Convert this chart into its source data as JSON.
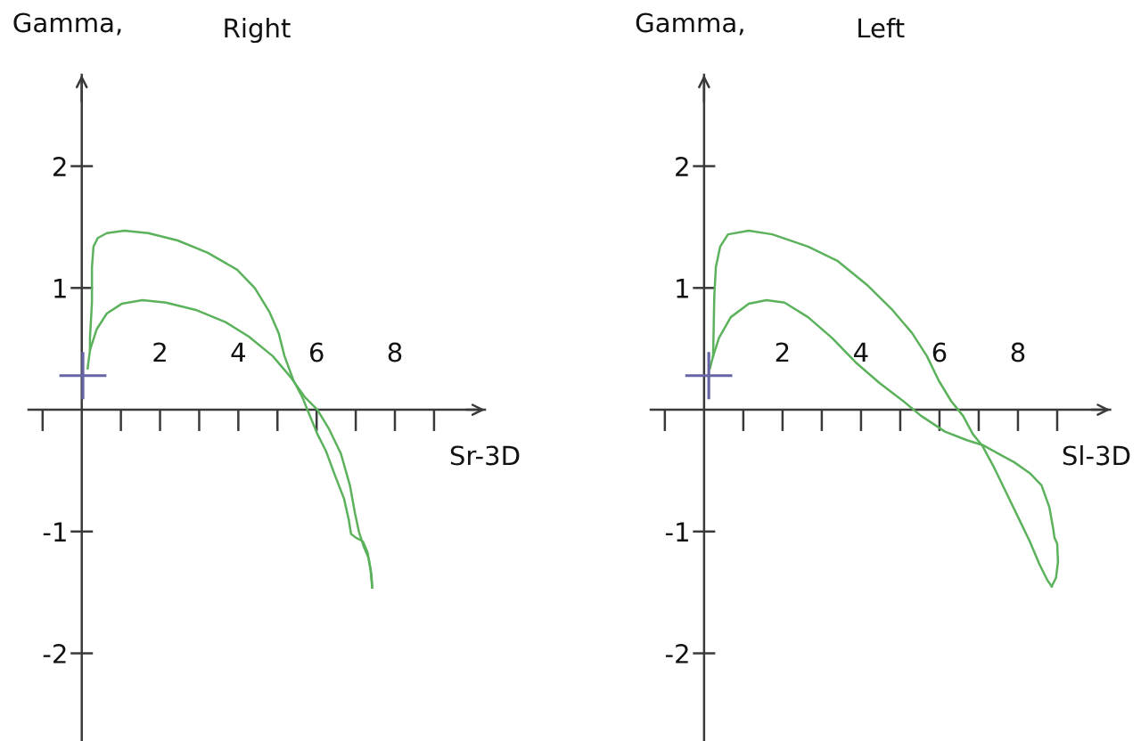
{
  "chart_data": [
    {
      "type": "line",
      "title": "Right",
      "ylabel": "Gamma,",
      "xlabel": "Sr-3D",
      "xlim": [
        -1.36,
        10.3
      ],
      "ylim": [
        -2.72,
        2.75
      ],
      "xticks": [
        {
          "value": -1,
          "label": null
        },
        {
          "value": 1,
          "label": null
        },
        2,
        {
          "value": 3,
          "label": null
        },
        4,
        {
          "value": 5,
          "label": null
        },
        6,
        {
          "value": 7,
          "label": null
        },
        8,
        {
          "value": 9,
          "label": null
        }
      ],
      "yticks": [
        -2,
        -1,
        1,
        2
      ],
      "series": [
        {
          "color": "#5cb25c",
          "x": [
            0.21,
            0.21,
            0.26,
            0.26,
            0.3,
            0.41,
            0.64,
            1.09,
            1.7,
            2.45,
            3.21,
            3.97,
            4.42,
            4.8,
            5.03,
            5.18,
            5.41,
            5.64,
            5.79,
            6.02,
            6.24,
            6.47,
            6.7,
            6.82,
            6.88,
            7.0,
            7.18,
            7.3,
            7.38,
            7.42
          ],
          "values": [
            0.49,
            0.59,
            0.88,
            1.17,
            1.34,
            1.41,
            1.45,
            1.47,
            1.45,
            1.39,
            1.29,
            1.15,
            1.0,
            0.8,
            0.63,
            0.44,
            0.24,
            0.1,
            -0.02,
            -0.2,
            -0.34,
            -0.54,
            -0.73,
            -0.9,
            -1.02,
            -1.05,
            -1.08,
            -1.17,
            -1.32,
            -1.46
          ]
        },
        {
          "color": "#5cb25c",
          "x": [
            0.15,
            0.21,
            0.38,
            0.64,
            1.02,
            1.55,
            2.15,
            2.91,
            3.67,
            4.27,
            4.88,
            5.33,
            5.71,
            6.02,
            6.32,
            6.62,
            6.85,
            6.98,
            7.08,
            7.2,
            7.33,
            7.4,
            7.42
          ],
          "values": [
            0.34,
            0.49,
            0.66,
            0.79,
            0.87,
            0.9,
            0.88,
            0.82,
            0.72,
            0.6,
            0.44,
            0.27,
            0.1,
            0.0,
            -0.16,
            -0.36,
            -0.62,
            -0.85,
            -1.0,
            -1.12,
            -1.22,
            -1.35,
            -1.46
          ]
        },
        {
          "type": "scatter",
          "marker": "cross",
          "color": "#6666a6",
          "x": [
            0.03
          ],
          "values": [
            0.28
          ]
        }
      ]
    },
    {
      "type": "line",
      "title": "Left",
      "ylabel": "Gamma,",
      "xlabel": "Sl-3D",
      "xlim": [
        -1.36,
        10.35
      ],
      "ylim": [
        -2.72,
        2.75
      ],
      "xticks": [
        {
          "value": -1,
          "label": null
        },
        {
          "value": 1,
          "label": null
        },
        2,
        {
          "value": 3,
          "label": null
        },
        4,
        {
          "value": 5,
          "label": null
        },
        6,
        {
          "value": 7,
          "label": null
        },
        8,
        {
          "value": 9,
          "label": null
        }
      ],
      "yticks": [
        -2,
        -1,
        1,
        2
      ],
      "series": [
        {
          "color": "#5cb25c",
          "x": [
            0.23,
            0.24,
            0.26,
            0.3,
            0.41,
            0.61,
            1.14,
            1.74,
            2.65,
            3.41,
            4.17,
            4.77,
            5.3,
            5.68,
            5.98,
            6.3,
            6.6,
            6.85,
            7.1,
            7.4,
            7.7,
            8.0,
            8.3,
            8.55,
            8.75,
            8.86
          ],
          "values": [
            0.44,
            0.59,
            0.93,
            1.17,
            1.34,
            1.44,
            1.47,
            1.44,
            1.34,
            1.22,
            1.02,
            0.83,
            0.63,
            0.44,
            0.24,
            0.07,
            -0.05,
            -0.2,
            -0.3,
            -0.48,
            -0.68,
            -0.88,
            -1.08,
            -1.27,
            -1.4,
            -1.45
          ]
        },
        {
          "color": "#5cb25c",
          "x": [
            0.15,
            0.23,
            0.38,
            0.68,
            1.14,
            1.59,
            2.05,
            2.65,
            3.26,
            3.86,
            4.47,
            5.08,
            5.53,
            6.14,
            6.7,
            7.1,
            7.5,
            7.9,
            8.3,
            8.6,
            8.8,
            8.9,
            8.93,
            9.0,
            9.02,
            8.97,
            8.86
          ],
          "values": [
            0.34,
            0.44,
            0.59,
            0.76,
            0.87,
            0.9,
            0.88,
            0.76,
            0.59,
            0.39,
            0.22,
            0.07,
            -0.05,
            -0.18,
            -0.25,
            -0.29,
            -0.36,
            -0.43,
            -0.52,
            -0.62,
            -0.8,
            -0.98,
            -1.05,
            -1.1,
            -1.25,
            -1.38,
            -1.45
          ]
        },
        {
          "type": "scatter",
          "marker": "cross",
          "color": "#6666a6",
          "x": [
            0.12
          ],
          "values": [
            0.28
          ]
        }
      ]
    }
  ]
}
